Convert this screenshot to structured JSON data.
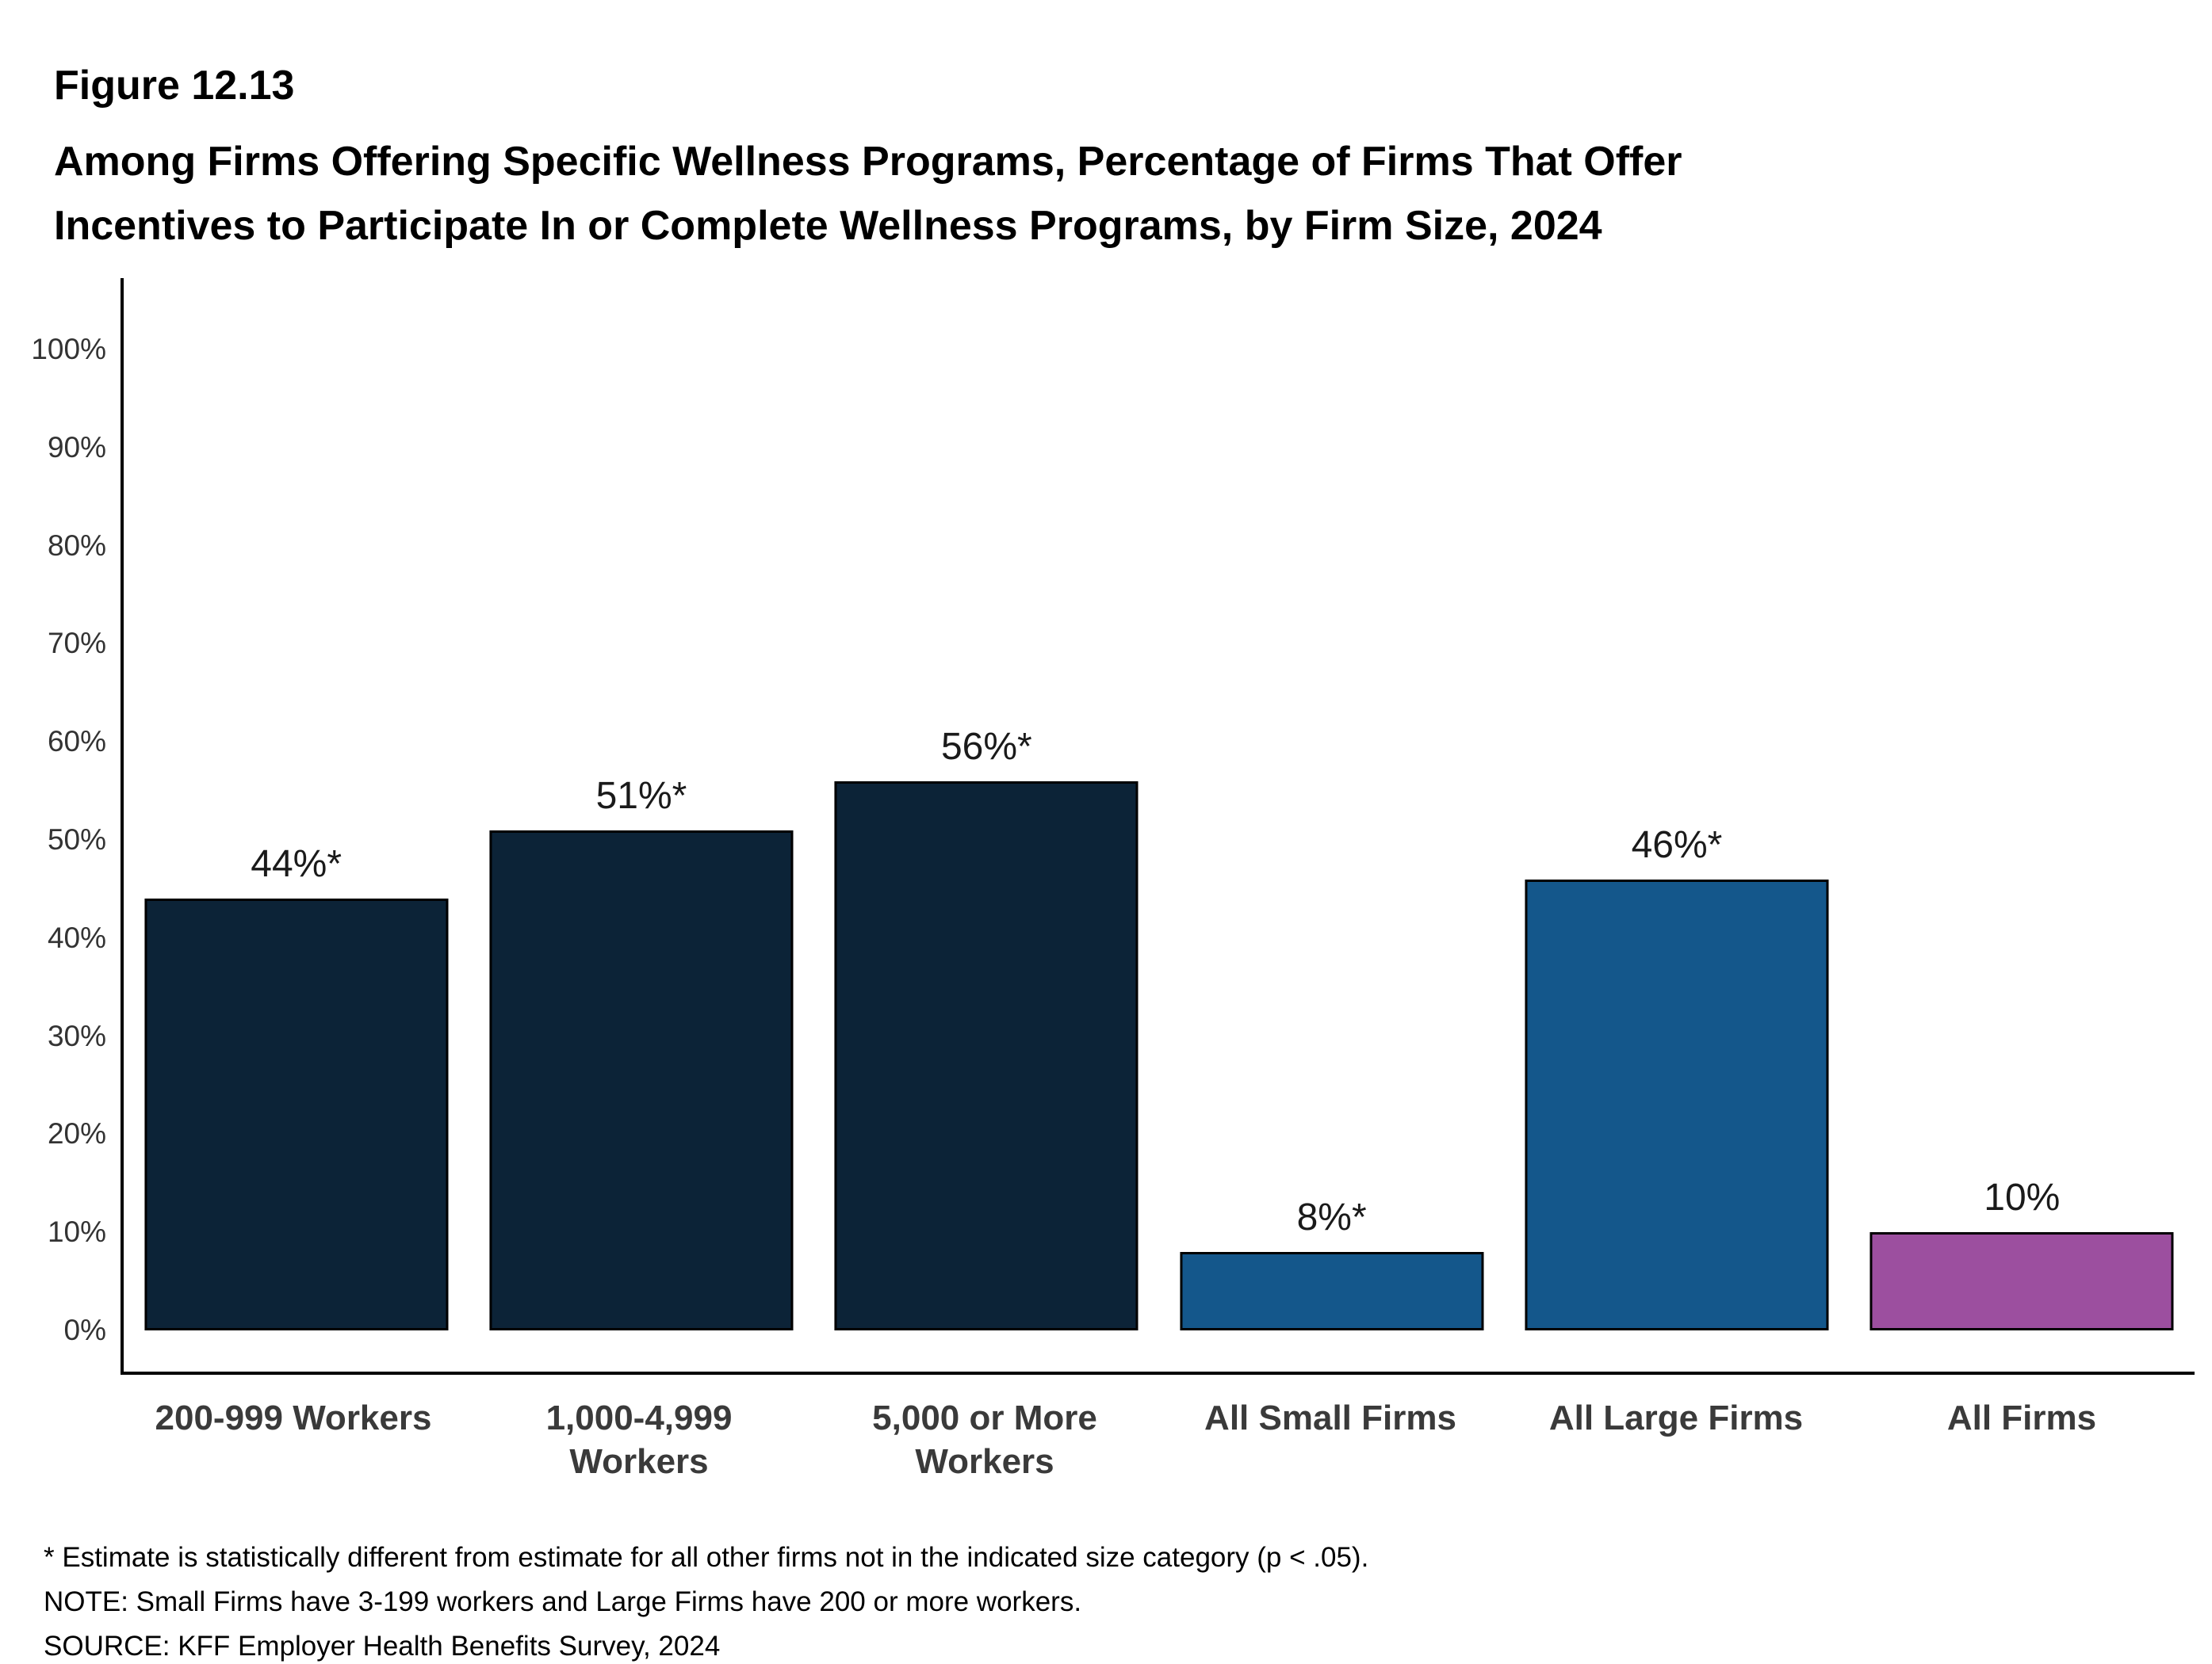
{
  "header": {
    "figure_label": "Figure 12.13",
    "title_line1": "Among Firms Offering Specific Wellness Programs, Percentage of Firms That Offer",
    "title_line2": "Incentives to Participate In or Complete Wellness Programs, by Firm Size, 2024"
  },
  "footnotes": {
    "statistical": "* Estimate is statistically different from estimate for all other firms not in the indicated size category (p < .05).",
    "note": "NOTE: Small Firms have 3-199 workers and Large Firms have 200 or more workers.",
    "source": "SOURCE: KFF Employer Health Benefits Survey, 2024"
  },
  "chart_data": {
    "type": "bar",
    "title": "Among Firms Offering Specific Wellness Programs, Percentage of Firms That Offer Incentives to Participate In or Complete Wellness Programs, by Firm Size, 2024",
    "categories": [
      "200-999 Workers",
      "1,000-4,999\nWorkers",
      "5,000 or More\nWorkers",
      "All Small Firms",
      "All Large Firms",
      "All Firms"
    ],
    "values": [
      44,
      51,
      56,
      8,
      46,
      10
    ],
    "value_labels": [
      "44%*",
      "51%*",
      "56%*",
      "8%*",
      "46%*",
      "10%"
    ],
    "bar_colors": [
      "#0c2337",
      "#0c2337",
      "#0c2337",
      "#14578b",
      "#14578b",
      "#9c4f9f"
    ],
    "bar_border_color": "#000000",
    "xlabel": "",
    "ylabel": "",
    "ylim": [
      0,
      100
    ],
    "ytick_interval": 10,
    "ytick_labels": [
      "0%",
      "10%",
      "20%",
      "30%",
      "40%",
      "50%",
      "60%",
      "70%",
      "80%",
      "90%",
      "100%"
    ],
    "grid": false,
    "legend": "none"
  }
}
